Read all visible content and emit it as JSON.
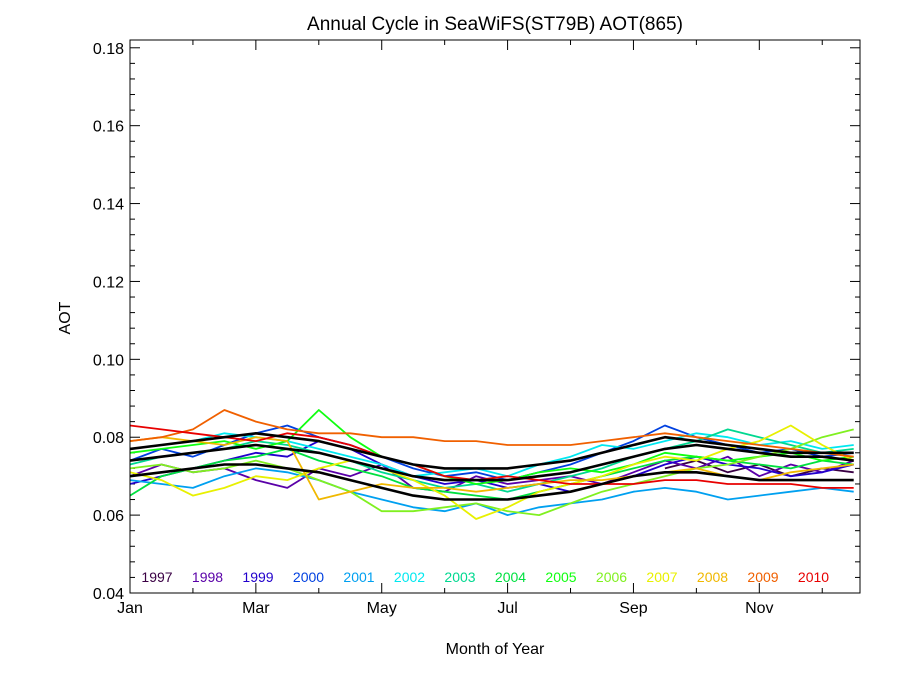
{
  "chart_data": {
    "type": "line",
    "title": "Annual Cycle in SeaWiFS(ST79B) AOT(865)",
    "xlabel": "Month of Year",
    "ylabel": "AOT",
    "xlim": [
      1,
      12.6
    ],
    "ylim": [
      0.04,
      0.182
    ],
    "x_ticks": [
      {
        "value": 1,
        "label": "Jan"
      },
      {
        "value": 3,
        "label": "Mar"
      },
      {
        "value": 5,
        "label": "May"
      },
      {
        "value": 7,
        "label": "Jul"
      },
      {
        "value": 9,
        "label": "Sep"
      },
      {
        "value": 11,
        "label": "Nov"
      }
    ],
    "y_ticks": [
      {
        "value": 0.04,
        "label": "0.04"
      },
      {
        "value": 0.06,
        "label": "0.06"
      },
      {
        "value": 0.08,
        "label": "0.08"
      },
      {
        "value": 0.1,
        "label": "0.10"
      },
      {
        "value": 0.12,
        "label": "0.12"
      },
      {
        "value": 0.14,
        "label": "0.14"
      },
      {
        "value": 0.16,
        "label": "0.16"
      },
      {
        "value": 0.18,
        "label": "0.18"
      }
    ],
    "legend_position": "bottom-inside",
    "series": [
      {
        "name": "1997",
        "color": "#3a0044",
        "x": [
          9.5,
          10,
          10.5,
          11,
          11.5,
          12,
          12.5
        ],
        "values": [
          0.072,
          0.074,
          0.071,
          0.073,
          0.07,
          0.072,
          0.071
        ]
      },
      {
        "name": "1998",
        "color": "#5a00a8",
        "x": [
          1,
          1.5,
          2,
          2.5,
          3,
          3.5,
          4,
          4.5,
          5,
          5.5,
          6,
          6.5,
          7,
          7.5,
          8,
          8.5,
          9,
          9.5,
          10,
          10.5,
          11,
          11.5,
          12,
          12.5
        ],
        "values": [
          0.07,
          0.073,
          0.071,
          0.072,
          0.069,
          0.067,
          0.072,
          0.07,
          0.073,
          0.067,
          0.066,
          0.07,
          0.068,
          0.069,
          0.07,
          0.068,
          0.071,
          0.074,
          0.072,
          0.075,
          0.07,
          0.073,
          0.071,
          0.074
        ]
      },
      {
        "name": "1999",
        "color": "#2200cc",
        "x": [
          1,
          1.5,
          2,
          2.5,
          3,
          3.5,
          4,
          4.5,
          5,
          5.5,
          6,
          6.5,
          7,
          7.5,
          8,
          8.5,
          9,
          9.5,
          10,
          10.5,
          11,
          11.5,
          12,
          12.5
        ],
        "values": [
          0.068,
          0.07,
          0.072,
          0.074,
          0.076,
          0.075,
          0.079,
          0.077,
          0.073,
          0.07,
          0.068,
          0.069,
          0.067,
          0.068,
          0.066,
          0.068,
          0.07,
          0.073,
          0.075,
          0.073,
          0.072,
          0.07,
          0.071,
          0.073
        ]
      },
      {
        "name": "2000",
        "color": "#0040e0",
        "x": [
          1,
          1.5,
          2,
          2.5,
          3,
          3.5,
          4,
          4.5,
          5,
          5.5,
          6,
          6.5,
          7,
          7.5,
          8,
          8.5,
          9,
          9.5,
          10,
          10.5,
          11,
          11.5,
          12,
          12.5
        ],
        "values": [
          0.074,
          0.077,
          0.075,
          0.078,
          0.081,
          0.083,
          0.08,
          0.078,
          0.075,
          0.072,
          0.07,
          0.071,
          0.069,
          0.071,
          0.073,
          0.076,
          0.079,
          0.083,
          0.08,
          0.078,
          0.076,
          0.077,
          0.075,
          0.076
        ]
      },
      {
        "name": "2001",
        "color": "#00a0f0",
        "x": [
          1,
          1.5,
          2,
          2.5,
          3,
          3.5,
          4,
          4.5,
          5,
          5.5,
          6,
          6.5,
          7,
          7.5,
          8,
          8.5,
          9,
          9.5,
          10,
          10.5,
          11,
          11.5,
          12,
          12.5
        ],
        "values": [
          0.069,
          0.068,
          0.067,
          0.07,
          0.072,
          0.071,
          0.069,
          0.066,
          0.064,
          0.062,
          0.061,
          0.063,
          0.06,
          0.062,
          0.063,
          0.064,
          0.066,
          0.067,
          0.066,
          0.064,
          0.065,
          0.066,
          0.067,
          0.066
        ]
      },
      {
        "name": "2002",
        "color": "#00e8f0",
        "x": [
          1,
          1.5,
          2,
          2.5,
          3,
          3.5,
          4,
          4.5,
          5,
          5.5,
          6,
          6.5,
          7,
          7.5,
          8,
          8.5,
          9,
          9.5,
          10,
          10.5,
          11,
          11.5,
          12,
          12.5
        ],
        "values": [
          0.077,
          0.078,
          0.079,
          0.081,
          0.08,
          0.079,
          0.077,
          0.075,
          0.073,
          0.07,
          0.071,
          0.072,
          0.07,
          0.073,
          0.075,
          0.078,
          0.077,
          0.079,
          0.081,
          0.08,
          0.078,
          0.079,
          0.077,
          0.078
        ]
      },
      {
        "name": "2003",
        "color": "#00d890",
        "x": [
          1,
          1.5,
          2,
          2.5,
          3,
          3.5,
          4,
          4.5,
          5,
          5.5,
          6,
          6.5,
          7,
          7.5,
          8,
          8.5,
          9,
          9.5,
          10,
          10.5,
          11,
          11.5,
          12,
          12.5
        ],
        "values": [
          0.073,
          0.075,
          0.076,
          0.077,
          0.079,
          0.078,
          0.076,
          0.074,
          0.071,
          0.069,
          0.067,
          0.068,
          0.066,
          0.068,
          0.07,
          0.072,
          0.075,
          0.077,
          0.079,
          0.082,
          0.08,
          0.078,
          0.076,
          0.077
        ]
      },
      {
        "name": "2004",
        "color": "#00e040",
        "x": [
          1,
          1.5,
          2,
          2.5,
          3,
          3.5,
          4,
          4.5,
          5,
          5.5,
          6,
          6.5,
          7,
          7.5,
          8,
          8.5,
          9,
          9.5,
          10,
          10.5,
          11,
          11.5,
          12,
          12.5
        ],
        "values": [
          0.065,
          0.07,
          0.072,
          0.074,
          0.075,
          0.077,
          0.074,
          0.072,
          0.07,
          0.067,
          0.066,
          0.065,
          0.064,
          0.066,
          0.068,
          0.07,
          0.072,
          0.074,
          0.075,
          0.074,
          0.073,
          0.072,
          0.074,
          0.073
        ]
      },
      {
        "name": "2005",
        "color": "#10ff10",
        "x": [
          1,
          1.5,
          2,
          2.5,
          3,
          3.5,
          4,
          4.5,
          5,
          5.5,
          6,
          6.5,
          7,
          7.5,
          8,
          8.5,
          9,
          9.5,
          10,
          10.5,
          11,
          11.5,
          12,
          12.5
        ],
        "values": [
          0.076,
          0.077,
          0.078,
          0.079,
          0.077,
          0.079,
          0.087,
          0.08,
          0.075,
          0.073,
          0.07,
          0.068,
          0.069,
          0.071,
          0.072,
          0.071,
          0.073,
          0.076,
          0.075,
          0.074,
          0.075,
          0.076,
          0.074,
          0.075
        ]
      },
      {
        "name": "2006",
        "color": "#80f020",
        "x": [
          1,
          1.5,
          2,
          2.5,
          3,
          3.5,
          4,
          4.5,
          5,
          5.5,
          6,
          6.5,
          7,
          7.5,
          8,
          8.5,
          9,
          9.5,
          10,
          10.5,
          11,
          11.5,
          12,
          12.5
        ],
        "values": [
          0.072,
          0.073,
          0.071,
          0.072,
          0.074,
          0.072,
          0.069,
          0.066,
          0.061,
          0.061,
          0.062,
          0.063,
          0.061,
          0.06,
          0.063,
          0.066,
          0.068,
          0.07,
          0.072,
          0.073,
          0.075,
          0.077,
          0.08,
          0.082
        ]
      },
      {
        "name": "2007",
        "color": "#e8f000",
        "x": [
          1,
          1.5,
          2,
          2.5,
          3,
          3.5,
          4,
          4.5,
          5,
          5.5,
          6,
          6.5,
          7,
          7.5,
          8,
          8.5,
          9,
          9.5,
          10,
          10.5,
          11,
          11.5,
          12,
          12.5
        ],
        "values": [
          0.071,
          0.069,
          0.065,
          0.067,
          0.07,
          0.069,
          0.072,
          0.074,
          0.072,
          0.069,
          0.065,
          0.059,
          0.062,
          0.066,
          0.068,
          0.07,
          0.073,
          0.075,
          0.074,
          0.077,
          0.079,
          0.083,
          0.078,
          0.074
        ]
      },
      {
        "name": "2008",
        "color": "#f0b800",
        "x": [
          1,
          1.5,
          2,
          2.5,
          3,
          3.5,
          4,
          4.5,
          5,
          5.5,
          6,
          6.5,
          7,
          7.5,
          8,
          8.5,
          9,
          9.5,
          10,
          10.5,
          11,
          11.5,
          12,
          12.5
        ],
        "values": [
          0.079,
          0.08,
          0.079,
          0.078,
          0.08,
          0.079,
          0.064,
          0.066,
          0.068,
          0.067,
          0.067,
          0.066,
          0.067,
          0.068,
          0.069,
          0.069,
          0.07,
          0.071,
          0.072,
          0.07,
          0.069,
          0.071,
          0.072,
          0.073
        ]
      },
      {
        "name": "2009",
        "color": "#f06000",
        "x": [
          1,
          1.5,
          2,
          2.5,
          3,
          3.5,
          4,
          4.5,
          5,
          5.5,
          6,
          6.5,
          7,
          7.5,
          8,
          8.5,
          9,
          9.5,
          10,
          10.5,
          11,
          11.5,
          12,
          12.5
        ],
        "values": [
          0.079,
          0.08,
          0.082,
          0.087,
          0.084,
          0.082,
          0.081,
          0.081,
          0.08,
          0.08,
          0.079,
          0.079,
          0.078,
          0.078,
          0.078,
          0.079,
          0.08,
          0.081,
          0.08,
          0.079,
          0.078,
          0.077,
          0.076,
          0.075
        ]
      },
      {
        "name": "2010",
        "color": "#e80000",
        "x": [
          1,
          1.5,
          2,
          2.5,
          3,
          3.5,
          4,
          4.5,
          5,
          5.5,
          6,
          6.5,
          7,
          7.5,
          8,
          8.5,
          9,
          9.5,
          10,
          10.5,
          11,
          11.5,
          12,
          12.5
        ],
        "values": [
          0.083,
          0.082,
          0.081,
          0.08,
          0.079,
          0.081,
          0.08,
          0.078,
          0.075,
          0.073,
          0.07,
          0.069,
          0.07,
          0.069,
          0.068,
          0.068,
          0.068,
          0.069,
          0.069,
          0.068,
          0.068,
          0.068,
          0.067,
          0.067
        ]
      },
      {
        "name": "",
        "color": "#000000",
        "x": [
          1,
          1.5,
          2,
          2.5,
          3,
          3.5,
          4,
          4.5,
          5,
          5.5,
          6,
          6.5,
          7,
          7.5,
          8,
          8.5,
          9,
          9.5,
          10,
          10.5,
          11,
          11.5,
          12,
          12.5
        ],
        "values": [
          0.074,
          0.075,
          0.076,
          0.077,
          0.078,
          0.077,
          0.076,
          0.074,
          0.072,
          0.07,
          0.069,
          0.069,
          0.069,
          0.07,
          0.071,
          0.073,
          0.075,
          0.077,
          0.078,
          0.077,
          0.076,
          0.075,
          0.075,
          0.074
        ]
      },
      {
        "name": "",
        "color": "#000000",
        "x": [
          1,
          1.5,
          2,
          2.5,
          3,
          3.5,
          4,
          4.5,
          5,
          5.5,
          6,
          6.5,
          7,
          7.5,
          8,
          8.5,
          9,
          9.5,
          10,
          10.5,
          11,
          11.5,
          12,
          12.5
        ],
        "values": [
          0.07,
          0.071,
          0.072,
          0.073,
          0.073,
          0.072,
          0.071,
          0.069,
          0.067,
          0.065,
          0.064,
          0.064,
          0.064,
          0.065,
          0.066,
          0.068,
          0.07,
          0.071,
          0.071,
          0.07,
          0.069,
          0.069,
          0.069,
          0.069
        ]
      },
      {
        "name": "",
        "color": "#000000",
        "x": [
          1,
          1.5,
          2,
          2.5,
          3,
          3.5,
          4,
          4.5,
          5,
          5.5,
          6,
          6.5,
          7,
          7.5,
          8,
          8.5,
          9,
          9.5,
          10,
          10.5,
          11,
          11.5,
          12,
          12.5
        ],
        "values": [
          0.077,
          0.078,
          0.079,
          0.08,
          0.081,
          0.08,
          0.079,
          0.077,
          0.075,
          0.073,
          0.072,
          0.072,
          0.072,
          0.073,
          0.074,
          0.076,
          0.078,
          0.08,
          0.079,
          0.078,
          0.077,
          0.076,
          0.076,
          0.076
        ]
      }
    ]
  }
}
